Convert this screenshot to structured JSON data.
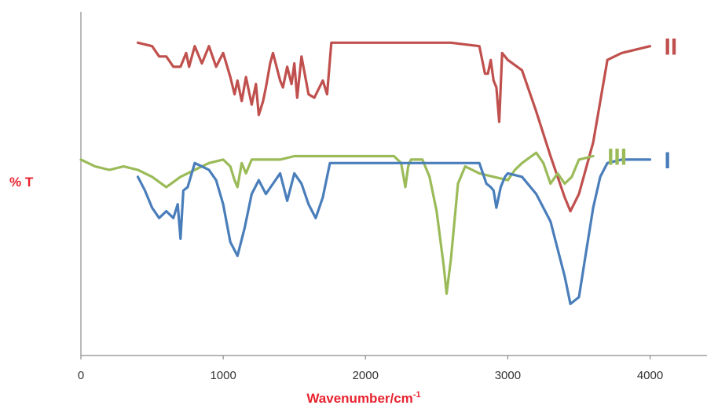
{
  "chart_data": {
    "type": "line",
    "title": "",
    "xlabel_main": "Wavenumber/cm",
    "xlabel_sup": "-1",
    "ylabel": "% T",
    "xlim": [
      0,
      4400
    ],
    "ylim": [
      0,
      100
    ],
    "xticks": [
      0,
      1000,
      2000,
      3000,
      4000
    ],
    "grid": false,
    "legend": "inline-right",
    "colors": {
      "axis_title": "#e8232f",
      "axis": "#8c8c8c"
    },
    "series": [
      {
        "name": "II",
        "color": "#c0504d",
        "x": [
          400,
          500,
          550,
          600,
          650,
          700,
          740,
          760,
          800,
          850,
          900,
          950,
          1000,
          1050,
          1080,
          1100,
          1130,
          1160,
          1200,
          1230,
          1250,
          1280,
          1300,
          1330,
          1350,
          1400,
          1420,
          1450,
          1480,
          1500,
          1520,
          1550,
          1600,
          1640,
          1700,
          1730,
          1760,
          1800,
          2000,
          2300,
          2600,
          2800,
          2840,
          2860,
          2880,
          2900,
          2920,
          2940,
          2960,
          3000,
          3100,
          3200,
          3300,
          3400,
          3440,
          3500,
          3600,
          3700,
          3800,
          4000
        ],
        "y": [
          91,
          90,
          87,
          87,
          84,
          84,
          88,
          84,
          90,
          85,
          90,
          84,
          88,
          81,
          76,
          80,
          74,
          81,
          73,
          79,
          70,
          74,
          78,
          85,
          88,
          80,
          78,
          84,
          79,
          85,
          75,
          87,
          76,
          75,
          80,
          76,
          91,
          91,
          91,
          91,
          91,
          90,
          82,
          82,
          86,
          80,
          78,
          68,
          88,
          86,
          83,
          71,
          58,
          46,
          42,
          47,
          62,
          86,
          88,
          90
        ]
      },
      {
        "name": "III",
        "color": "#9bbb59",
        "x": [
          0,
          100,
          200,
          300,
          400,
          500,
          600,
          700,
          800,
          900,
          1000,
          1050,
          1080,
          1100,
          1130,
          1160,
          1200,
          1300,
          1400,
          1500,
          1600,
          1800,
          2000,
          2200,
          2250,
          2280,
          2300,
          2320,
          2400,
          2450,
          2500,
          2550,
          2570,
          2600,
          2650,
          2700,
          2800,
          2900,
          3000,
          3050,
          3100,
          3200,
          3250,
          3300,
          3350,
          3400,
          3450,
          3500,
          3600
        ],
        "y": [
          57,
          55,
          54,
          55,
          54,
          52,
          49,
          52,
          54,
          56,
          57,
          55,
          51,
          49,
          56,
          53,
          57,
          57,
          57,
          58,
          58,
          58,
          58,
          58,
          56,
          49,
          55,
          57,
          57,
          52,
          42,
          26,
          18,
          28,
          50,
          55,
          53,
          52,
          51,
          54,
          56,
          59,
          56,
          50,
          53,
          50,
          52,
          57,
          58
        ]
      },
      {
        "name": "I",
        "color": "#4a7ebb",
        "x": [
          400,
          450,
          500,
          550,
          600,
          650,
          680,
          700,
          720,
          750,
          800,
          850,
          900,
          950,
          1000,
          1050,
          1100,
          1150,
          1200,
          1250,
          1300,
          1400,
          1450,
          1500,
          1550,
          1600,
          1650,
          1700,
          1750,
          1800,
          2000,
          2200,
          2400,
          2600,
          2800,
          2850,
          2880,
          2900,
          2920,
          2950,
          2980,
          3000,
          3100,
          3200,
          3300,
          3400,
          3440,
          3500,
          3550,
          3600,
          3650,
          3700,
          3800,
          4000
        ],
        "y": [
          52,
          48,
          43,
          40,
          42,
          40,
          44,
          34,
          48,
          49,
          56,
          55,
          54,
          51,
          44,
          33,
          29,
          37,
          47,
          51,
          47,
          53,
          45,
          53,
          50,
          44,
          40,
          46,
          56,
          56,
          56,
          56,
          56,
          56,
          56,
          50,
          49,
          48,
          43,
          49,
          52,
          53,
          52,
          47,
          39,
          23,
          15,
          17,
          30,
          43,
          52,
          56,
          57,
          57
        ]
      }
    ]
  }
}
